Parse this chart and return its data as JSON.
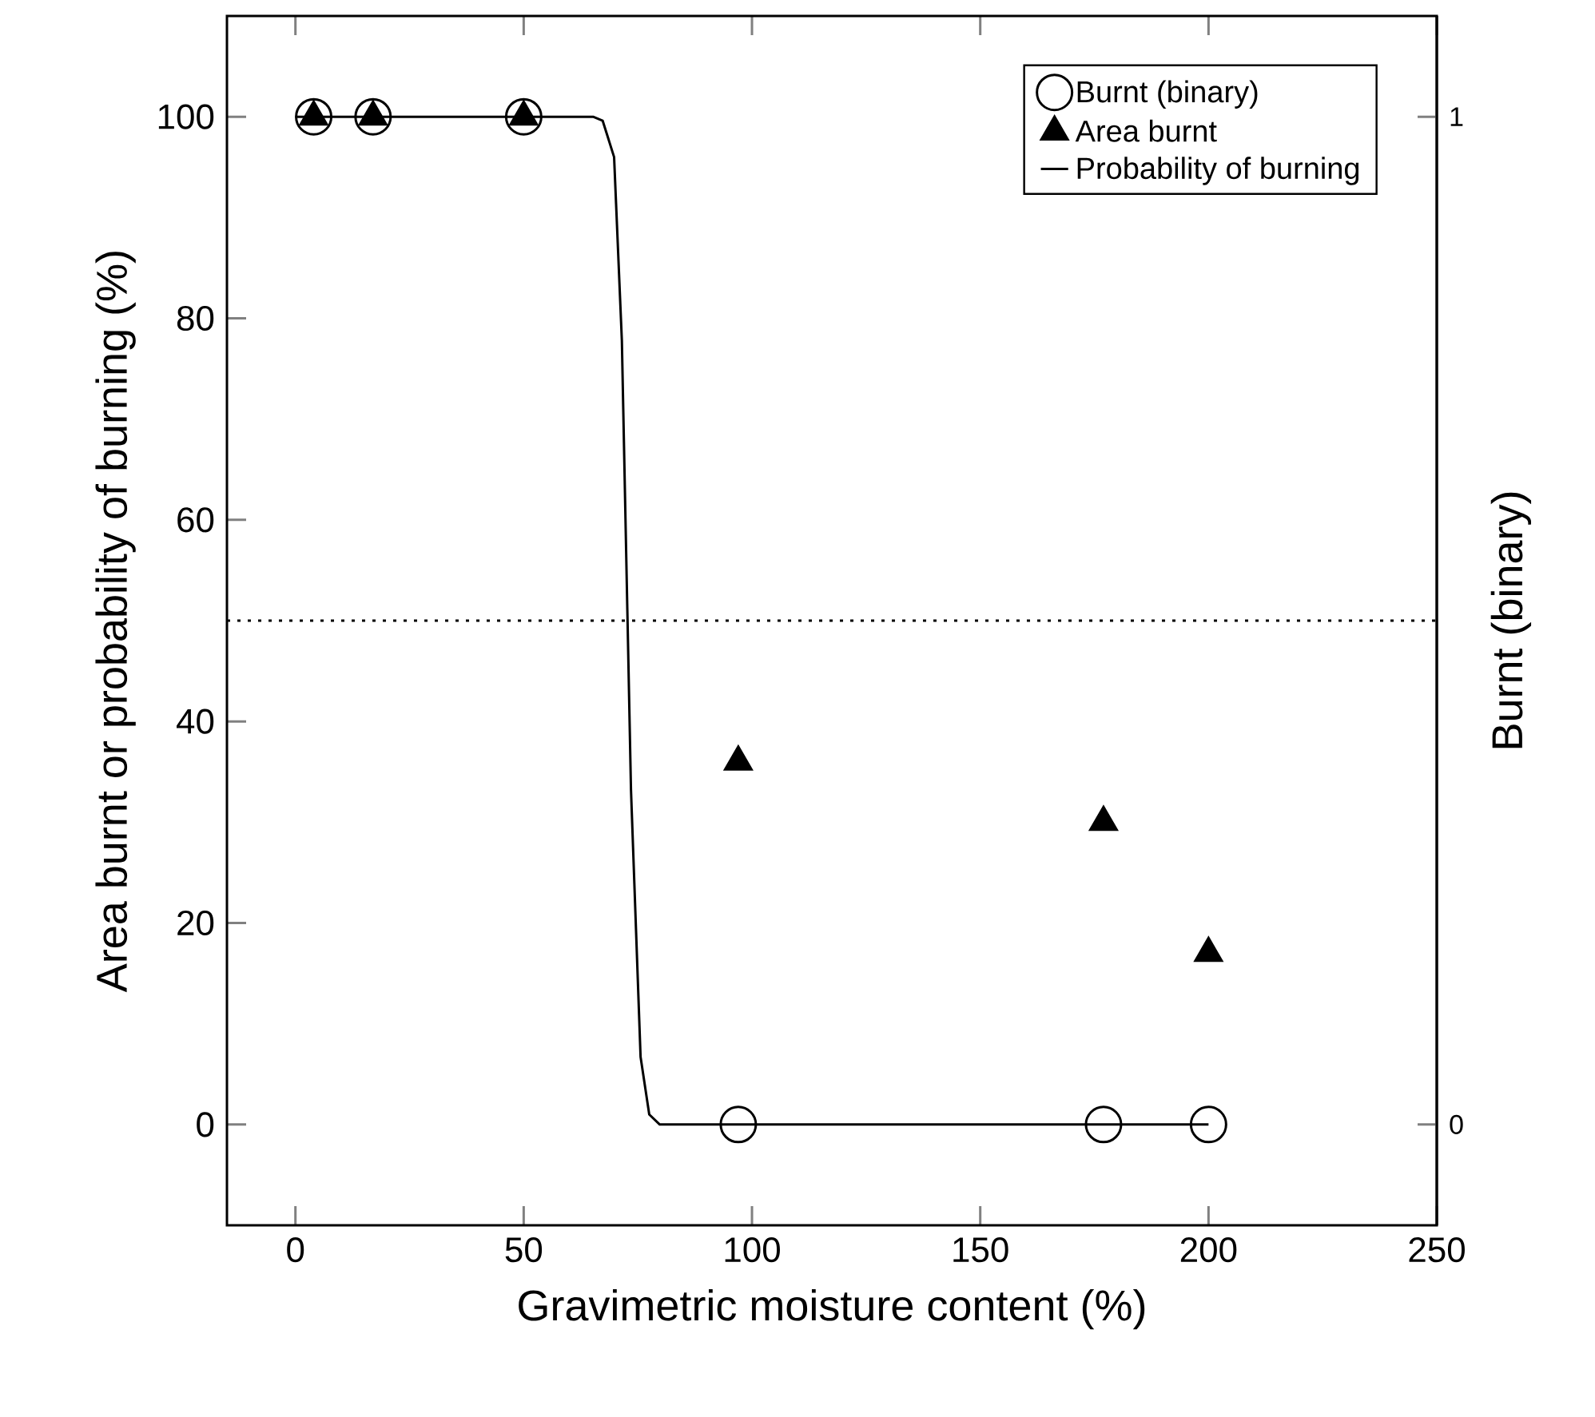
{
  "chart_data": {
    "type": "scatter",
    "xlabel": "Gravimetric moisture content (%)",
    "ylabel": "Area burnt or probability of burning (%)",
    "y2label": "Burnt (binary)",
    "xlim": [
      -15,
      250
    ],
    "xticks": [
      0,
      50,
      100,
      150,
      200,
      250
    ],
    "ylim": [
      -10,
      110
    ],
    "yticks": [
      0,
      20,
      40,
      60,
      80,
      100
    ],
    "y2lim": [
      -0.1,
      1.1
    ],
    "y2ticks": [
      0,
      1
    ],
    "legend": "top right",
    "series": [
      {
        "name": "Burnt (binary)",
        "marker": "circle",
        "axis": "y2",
        "color": "#000000",
        "x": [
          97,
          177,
          200,
          4,
          17,
          50
        ],
        "values": [
          0,
          0,
          0,
          1,
          1,
          1
        ]
      },
      {
        "name": "Area burnt",
        "marker": "triangle",
        "color": "#000000",
        "x": [
          97,
          177,
          200,
          4,
          17,
          50
        ],
        "values": [
          36,
          30,
          17,
          100,
          100,
          100
        ]
      },
      {
        "name": "Probability of burning",
        "type": "line",
        "marker": "none",
        "line_style": "solid",
        "color": "#000000",
        "x": [
          0,
          65.2,
          67.3,
          69.8,
          71.5,
          73.5,
          75.6,
          77.5,
          79.8,
          200
        ],
        "values": [
          100,
          100,
          99.6,
          96,
          77.8,
          33.2,
          6.7,
          1,
          0,
          0
        ]
      }
    ],
    "ref_lines": [
      {
        "axis": "y",
        "value": 50,
        "line_style": "dotted",
        "color": "#000000"
      }
    ]
  }
}
